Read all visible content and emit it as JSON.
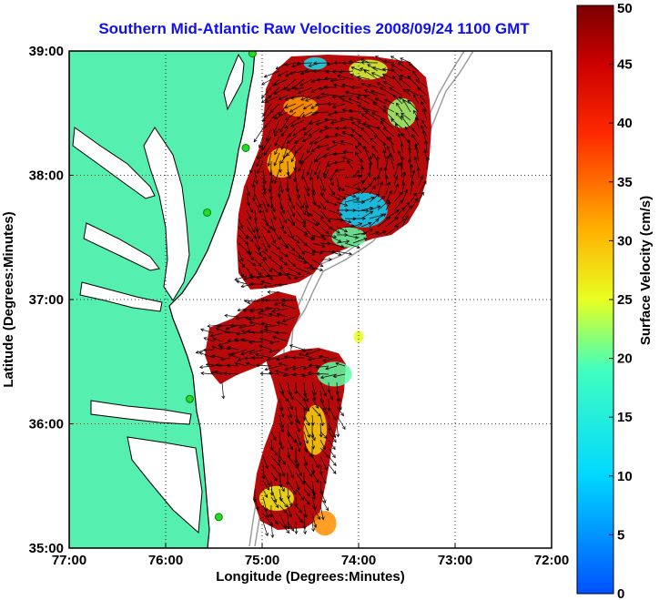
{
  "title": "Southern Mid-Atlantic Raw Velocities 2008/09/24 1100 GMT",
  "map": {
    "xlabel": "Longitude (Degrees:Minutes)",
    "ylabel": "Latitude (Degrees:Minutes)",
    "lon_ticks": [
      "77:00",
      "76:00",
      "75:00",
      "74:00",
      "73:00",
      "72:00"
    ],
    "lat_ticks": [
      "39:00",
      "38:00",
      "37:00",
      "36:00",
      "35:00"
    ],
    "lon_range": [
      -77,
      -72
    ],
    "lat_range": [
      35,
      39
    ],
    "grid": "dotted",
    "land_color": "#55f0b0",
    "water_color": "#ffffff",
    "coastline_color": "#000000",
    "isobath_color": "#999999",
    "station_color": "#22dd22",
    "arrow_color": "#000000"
  },
  "colorbar": {
    "label": "Surface Velocity (cm/s)",
    "ticks": [
      "50",
      "45",
      "40",
      "35",
      "30",
      "25",
      "20",
      "15",
      "10",
      "5",
      "0"
    ],
    "range": [
      0,
      50
    ],
    "colormap": "jet"
  },
  "chart_data": {
    "type": "heatmap",
    "title": "Southern Mid-Atlantic Raw Velocities 2008/09/24 1100 GMT",
    "xlabel": "Longitude (Degrees:Minutes)",
    "ylabel": "Latitude (Degrees:Minutes)",
    "x_range": [
      -77,
      -72
    ],
    "y_range": [
      35,
      39
    ],
    "value_label": "Surface Velocity (cm/s)",
    "value_range": [
      0,
      50
    ],
    "stations": [
      {
        "lon": -75.1,
        "lat": 38.98
      },
      {
        "lon": -75.17,
        "lat": 38.22
      },
      {
        "lon": -75.57,
        "lat": 37.7
      },
      {
        "lon": -75.75,
        "lat": 36.2
      },
      {
        "lon": -75.45,
        "lat": 35.25
      }
    ],
    "speed_blobs": [
      {
        "lon": -74.45,
        "lat": 38.9,
        "rlon": 0.12,
        "rlat": 0.05,
        "value": 12
      },
      {
        "lon": -73.9,
        "lat": 38.85,
        "rlon": 0.2,
        "rlat": 0.08,
        "value": 24
      },
      {
        "lon": -73.55,
        "lat": 38.5,
        "rlon": 0.15,
        "rlat": 0.12,
        "value": 22
      },
      {
        "lon": -73.95,
        "lat": 37.72,
        "rlon": 0.25,
        "rlat": 0.14,
        "value": 10
      },
      {
        "lon": -74.1,
        "lat": 37.5,
        "rlon": 0.18,
        "rlat": 0.08,
        "value": 20
      },
      {
        "lon": -74.8,
        "lat": 38.1,
        "rlon": 0.15,
        "rlat": 0.12,
        "value": 30
      },
      {
        "lon": -74.6,
        "lat": 38.55,
        "rlon": 0.18,
        "rlat": 0.08,
        "value": 32
      },
      {
        "lon": -74.0,
        "lat": 36.7,
        "rlon": 0.05,
        "rlat": 0.05,
        "value": 25
      },
      {
        "lon": -74.25,
        "lat": 36.4,
        "rlon": 0.18,
        "rlat": 0.1,
        "value": 20
      },
      {
        "lon": -74.45,
        "lat": 35.95,
        "rlon": 0.12,
        "rlat": 0.2,
        "value": 28
      },
      {
        "lon": -74.85,
        "lat": 35.4,
        "rlon": 0.18,
        "rlat": 0.1,
        "value": 26
      },
      {
        "lon": -74.35,
        "lat": 35.2,
        "rlon": 0.12,
        "rlat": 0.1,
        "value": 33
      }
    ]
  }
}
